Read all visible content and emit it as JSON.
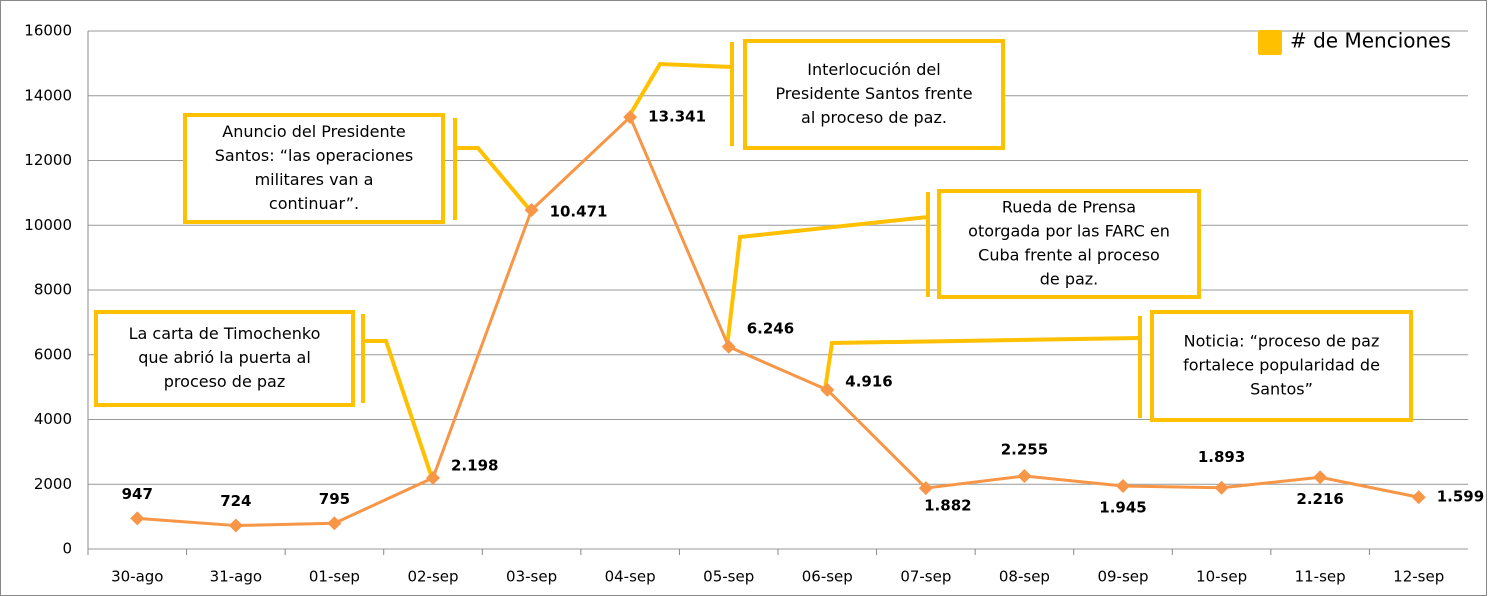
{
  "chart_data": {
    "type": "line",
    "categories": [
      "30-ago",
      "31-ago",
      "01-sep",
      "02-sep",
      "03-sep",
      "04-sep",
      "05-sep",
      "06-sep",
      "07-sep",
      "08-sep",
      "09-sep",
      "10-sep",
      "11-sep",
      "12-sep"
    ],
    "series": [
      {
        "name": "# de Menciones",
        "color": "#f79646",
        "marker_color": "#ffc000",
        "values": [
          947,
          724,
          795,
          2198,
          10471,
          13341,
          6246,
          4916,
          1882,
          2255,
          1945,
          1893,
          2216,
          1599
        ],
        "value_labels": [
          "947",
          "724",
          "795",
          "2.198",
          "10.471",
          "13.341",
          "6.246",
          "4.916",
          "1.882",
          "2.255",
          "1.945",
          "1.893",
          "2.216",
          "1.599"
        ]
      }
    ],
    "ylim": [
      0,
      16000
    ],
    "yticks": [
      0,
      2000,
      4000,
      6000,
      8000,
      10000,
      12000,
      14000,
      16000
    ],
    "grid": true,
    "legend": "top-right",
    "annotation_color": "#ffc000",
    "annotations": [
      [
        "La carta de Timochenko",
        "que abrió la puerta al",
        "proceso de paz"
      ],
      [
        "Anuncio del Presidente",
        "Santos: “las operaciones",
        "militares van a",
        "continuar”."
      ],
      [
        "Interlocución del",
        "Presidente Santos frente",
        "al proceso de paz."
      ],
      [
        "Rueda de Prensa",
        "otorgada por las FARC en",
        "Cuba frente al proceso",
        "de paz."
      ],
      [
        "Noticia: “proceso de paz",
        "fortalece popularidad de",
        "Santos”"
      ]
    ]
  }
}
